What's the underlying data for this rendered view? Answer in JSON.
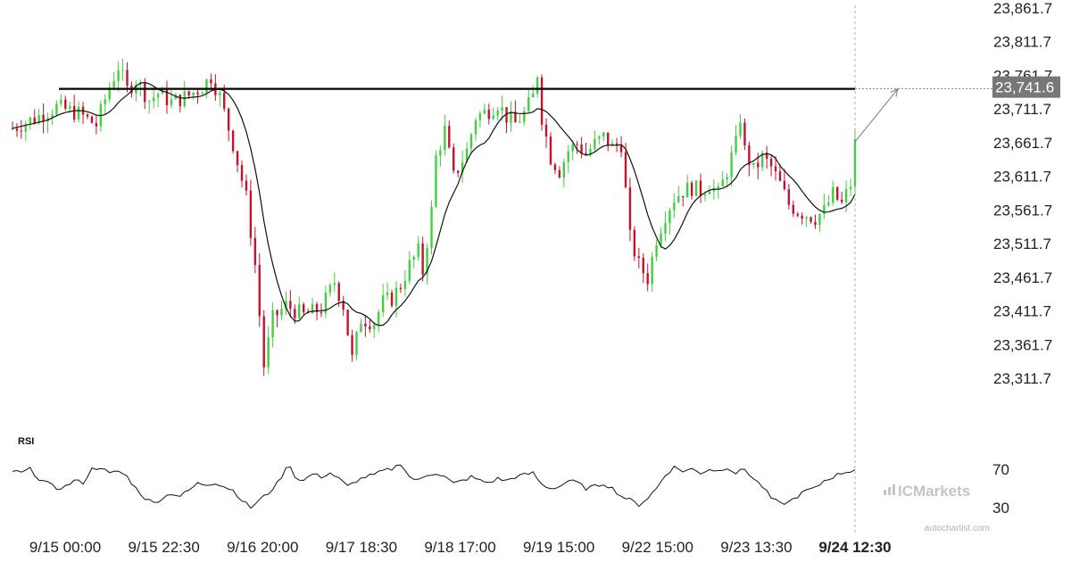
{
  "chart_data": {
    "type": "candlestick",
    "y_axis": {
      "ticks": [
        "23,861.7",
        "23,811.7",
        "23,761.7",
        "23,711.7",
        "23,661.7",
        "23,611.7",
        "23,561.7",
        "23,511.7",
        "23,461.7",
        "23,411.7",
        "23,361.7",
        "23,311.7"
      ],
      "range": [
        23290,
        23870
      ]
    },
    "x_axis": {
      "ticks": [
        "9/15 00:00",
        "9/15 22:30",
        "9/16 20:00",
        "9/17 18:30",
        "9/18 17:00",
        "9/19 15:00",
        "9/22 15:00",
        "9/23 13:30",
        "9/24 12:30"
      ],
      "current_label": "9/24 12:30"
    },
    "resistance_level": 23741.6,
    "resistance_label": "23,741.6",
    "candle_colors": {
      "up": "#3fd13f",
      "down": "#c8102e"
    },
    "moving_average_color": "#111111",
    "close_anchors": [
      [
        0,
        23683
      ],
      [
        5,
        23698
      ],
      [
        10,
        23715
      ],
      [
        15,
        23705
      ],
      [
        19,
        23688
      ],
      [
        22,
        23745
      ],
      [
        24,
        23775
      ],
      [
        26,
        23740
      ],
      [
        28,
        23755
      ],
      [
        31,
        23725
      ],
      [
        33,
        23735
      ],
      [
        36,
        23722
      ],
      [
        40,
        23732
      ],
      [
        43,
        23745
      ],
      [
        45,
        23760
      ],
      [
        47,
        23730
      ],
      [
        50,
        23660
      ],
      [
        53,
        23580
      ],
      [
        55,
        23480
      ],
      [
        57,
        23330
      ],
      [
        59,
        23400
      ],
      [
        62,
        23420
      ],
      [
        66,
        23405
      ],
      [
        70,
        23415
      ],
      [
        73,
        23455
      ],
      [
        75,
        23420
      ],
      [
        77,
        23340
      ],
      [
        79,
        23400
      ],
      [
        82,
        23395
      ],
      [
        84,
        23425
      ],
      [
        86,
        23430
      ],
      [
        88,
        23450
      ],
      [
        90,
        23480
      ],
      [
        92,
        23500
      ],
      [
        93,
        23470
      ],
      [
        95,
        23560
      ],
      [
        96,
        23640
      ],
      [
        98,
        23680
      ],
      [
        100,
        23610
      ],
      [
        103,
        23650
      ],
      [
        105,
        23700
      ],
      [
        108,
        23710
      ],
      [
        110,
        23720
      ],
      [
        112,
        23700
      ],
      [
        114,
        23690
      ],
      [
        116,
        23705
      ],
      [
        118,
        23730
      ],
      [
        119,
        23765
      ],
      [
        120,
        23700
      ],
      [
        122,
        23640
      ],
      [
        124,
        23620
      ],
      [
        126,
        23650
      ],
      [
        128,
        23660
      ],
      [
        130,
        23645
      ],
      [
        132,
        23660
      ],
      [
        134,
        23670
      ],
      [
        136,
        23655
      ],
      [
        138,
        23660
      ],
      [
        140,
        23520
      ],
      [
        142,
        23480
      ],
      [
        144,
        23460
      ],
      [
        146,
        23520
      ],
      [
        148,
        23555
      ],
      [
        150,
        23580
      ],
      [
        152,
        23590
      ],
      [
        154,
        23595
      ],
      [
        156,
        23590
      ],
      [
        158,
        23600
      ],
      [
        160,
        23585
      ],
      [
        162,
        23620
      ],
      [
        164,
        23660
      ],
      [
        165,
        23700
      ],
      [
        166,
        23650
      ],
      [
        168,
        23620
      ],
      [
        170,
        23640
      ],
      [
        172,
        23625
      ],
      [
        174,
        23600
      ],
      [
        176,
        23570
      ],
      [
        178,
        23560
      ],
      [
        180,
        23555
      ],
      [
        182,
        23550
      ],
      [
        184,
        23560
      ],
      [
        186,
        23585
      ],
      [
        188,
        23570
      ],
      [
        190,
        23600
      ],
      [
        191,
        23660
      ]
    ],
    "rsi": {
      "label": "RSI",
      "levels": [
        "70",
        "30"
      ],
      "range": [
        0,
        100
      ],
      "anchors": [
        [
          0,
          68
        ],
        [
          2,
          66
        ],
        [
          4,
          70
        ],
        [
          6,
          60
        ],
        [
          8,
          55
        ],
        [
          10,
          50
        ],
        [
          12,
          52
        ],
        [
          14,
          58
        ],
        [
          16,
          56
        ],
        [
          18,
          70
        ],
        [
          20,
          72
        ],
        [
          22,
          65
        ],
        [
          24,
          68
        ],
        [
          26,
          62
        ],
        [
          28,
          50
        ],
        [
          30,
          40
        ],
        [
          32,
          35
        ],
        [
          34,
          40
        ],
        [
          36,
          45
        ],
        [
          38,
          42
        ],
        [
          40,
          48
        ],
        [
          42,
          55
        ],
        [
          44,
          54
        ],
        [
          46,
          56
        ],
        [
          48,
          52
        ],
        [
          50,
          48
        ],
        [
          52,
          38
        ],
        [
          54,
          30
        ],
        [
          56,
          38
        ],
        [
          58,
          45
        ],
        [
          60,
          55
        ],
        [
          62,
          70
        ],
        [
          63,
          74
        ],
        [
          64,
          62
        ],
        [
          66,
          58
        ],
        [
          68,
          65
        ],
        [
          70,
          62
        ],
        [
          72,
          66
        ],
        [
          74,
          60
        ],
        [
          76,
          52
        ],
        [
          78,
          58
        ],
        [
          80,
          62
        ],
        [
          82,
          64
        ],
        [
          84,
          68
        ],
        [
          86,
          70
        ],
        [
          88,
          76
        ],
        [
          90,
          62
        ],
        [
          92,
          58
        ],
        [
          94,
          64
        ],
        [
          96,
          66
        ],
        [
          98,
          62
        ],
        [
          100,
          55
        ],
        [
          102,
          58
        ],
        [
          104,
          62
        ],
        [
          106,
          58
        ],
        [
          108,
          56
        ],
        [
          110,
          60
        ],
        [
          112,
          58
        ],
        [
          114,
          62
        ],
        [
          116,
          64
        ],
        [
          118,
          66
        ],
        [
          120,
          54
        ],
        [
          122,
          50
        ],
        [
          124,
          52
        ],
        [
          126,
          58
        ],
        [
          128,
          56
        ],
        [
          130,
          50
        ],
        [
          132,
          52
        ],
        [
          134,
          55
        ],
        [
          136,
          50
        ],
        [
          138,
          42
        ],
        [
          140,
          38
        ],
        [
          142,
          33
        ],
        [
          144,
          40
        ],
        [
          146,
          50
        ],
        [
          148,
          64
        ],
        [
          150,
          72
        ],
        [
          152,
          68
        ],
        [
          154,
          70
        ],
        [
          156,
          66
        ],
        [
          158,
          70
        ],
        [
          160,
          68
        ],
        [
          162,
          72
        ],
        [
          164,
          66
        ],
        [
          166,
          70
        ],
        [
          168,
          60
        ],
        [
          170,
          52
        ],
        [
          172,
          40
        ],
        [
          174,
          34
        ],
        [
          176,
          36
        ],
        [
          178,
          42
        ],
        [
          180,
          48
        ],
        [
          182,
          50
        ],
        [
          184,
          58
        ],
        [
          186,
          62
        ],
        [
          188,
          66
        ],
        [
          190,
          68
        ],
        [
          191,
          70
        ]
      ]
    }
  },
  "branding": {
    "logo": "ICMarkets",
    "credit": "autochartist.com"
  }
}
